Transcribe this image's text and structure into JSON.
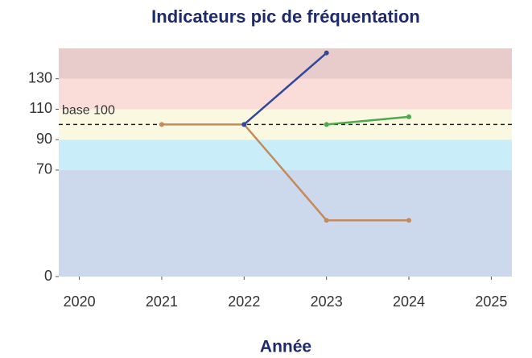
{
  "chart_data": {
    "type": "line",
    "title": "Indicateurs pic de fréquentation",
    "xlabel": "Année",
    "x": [
      2021,
      2022,
      2023,
      2024
    ],
    "series": [
      {
        "name": "orange",
        "color": "#c58a5a",
        "values": [
          100,
          100,
          37,
          37
        ]
      },
      {
        "name": "blue",
        "color": "#2f4a9a",
        "values": [
          null,
          100,
          147,
          null
        ]
      },
      {
        "name": "green",
        "color": "#4caa4c",
        "values": [
          null,
          null,
          100,
          105
        ]
      }
    ],
    "xlim": [
      2019.75,
      2025.25
    ],
    "xticks": [
      2020,
      2021,
      2022,
      2023,
      2024,
      2025
    ],
    "ylim": [
      0,
      150
    ],
    "yticks": [
      0,
      70,
      90,
      110,
      130
    ],
    "bands": [
      {
        "from": 0,
        "to": 70,
        "color": "#ccd9ec"
      },
      {
        "from": 70,
        "to": 90,
        "color": "#c9eefa"
      },
      {
        "from": 90,
        "to": 110,
        "color": "#fbf8e2"
      },
      {
        "from": 110,
        "to": 130,
        "color": "#fadcd8"
      },
      {
        "from": 130,
        "to": 150,
        "color": "#e8cbcb"
      }
    ],
    "reference": {
      "value": 100,
      "label": "base 100"
    }
  }
}
